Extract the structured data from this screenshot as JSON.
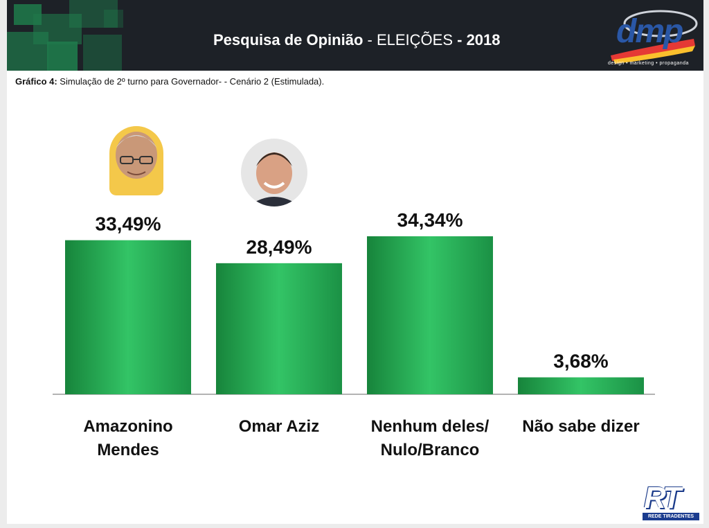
{
  "header": {
    "title_bold": "Pesquisa de Opinião",
    "title_sep1": " - ",
    "title_regular": "ELEIÇÕES",
    "title_sep2": " - ",
    "title_year": "2018",
    "logo_text": "dmp",
    "logo_tagline": "design • marketing • propaganda"
  },
  "subtitle": {
    "label": "Gráfico 4:",
    "text": " Simulação de 2º turno para Governador- - Cenário 2 (Estimulada)."
  },
  "footer_logo": {
    "letters": "RT",
    "band_text": "REDE TIRADENTES"
  },
  "colors": {
    "bar": "#2bbd5e",
    "bar_dark": "#1a8f40",
    "banner": "#1d2127",
    "axis": "#9a9a9a"
  },
  "chart_data": {
    "type": "bar",
    "categories": [
      [
        "Amazonino",
        "Mendes"
      ],
      [
        "Omar Aziz"
      ],
      [
        "Nenhum deles/",
        "Nulo/Branco"
      ],
      [
        "Não sabe dizer"
      ]
    ],
    "value_labels": [
      "33,49%",
      "28,49%",
      "34,34%",
      "3,68%"
    ],
    "values": [
      33.49,
      28.49,
      34.34,
      3.68
    ],
    "ylim": [
      0,
      34.34
    ],
    "grid": false,
    "legend": "none"
  }
}
